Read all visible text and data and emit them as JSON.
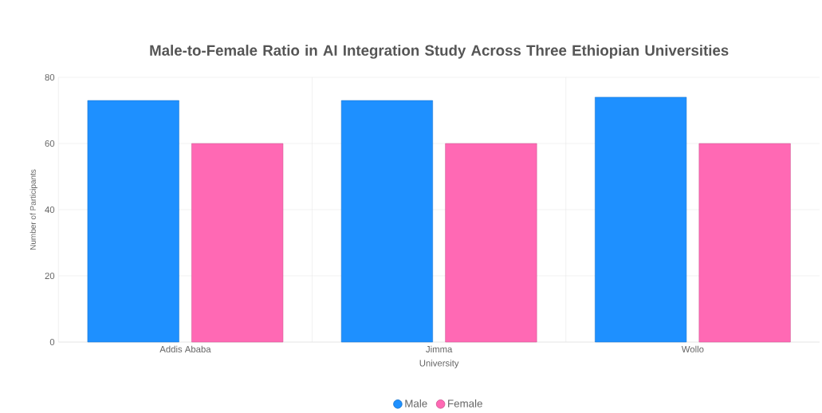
{
  "chart_data": {
    "type": "bar",
    "title": "Male-to-Female Ratio in AI Integration Study Across Three Ethiopian Universities",
    "xlabel": "University",
    "ylabel": "Number of Participants",
    "categories": [
      "Addis Ababa",
      "Jimma",
      "Wollo"
    ],
    "series": [
      {
        "name": "Male",
        "color": "#1e90ff",
        "values": [
          73,
          73,
          74
        ]
      },
      {
        "name": "Female",
        "color": "#ff69b4",
        "values": [
          60,
          60,
          60
        ]
      }
    ],
    "ylim": [
      0,
      80
    ],
    "yticks": [
      0,
      20,
      40,
      60,
      80
    ],
    "grid": true,
    "legend": "bottom"
  }
}
